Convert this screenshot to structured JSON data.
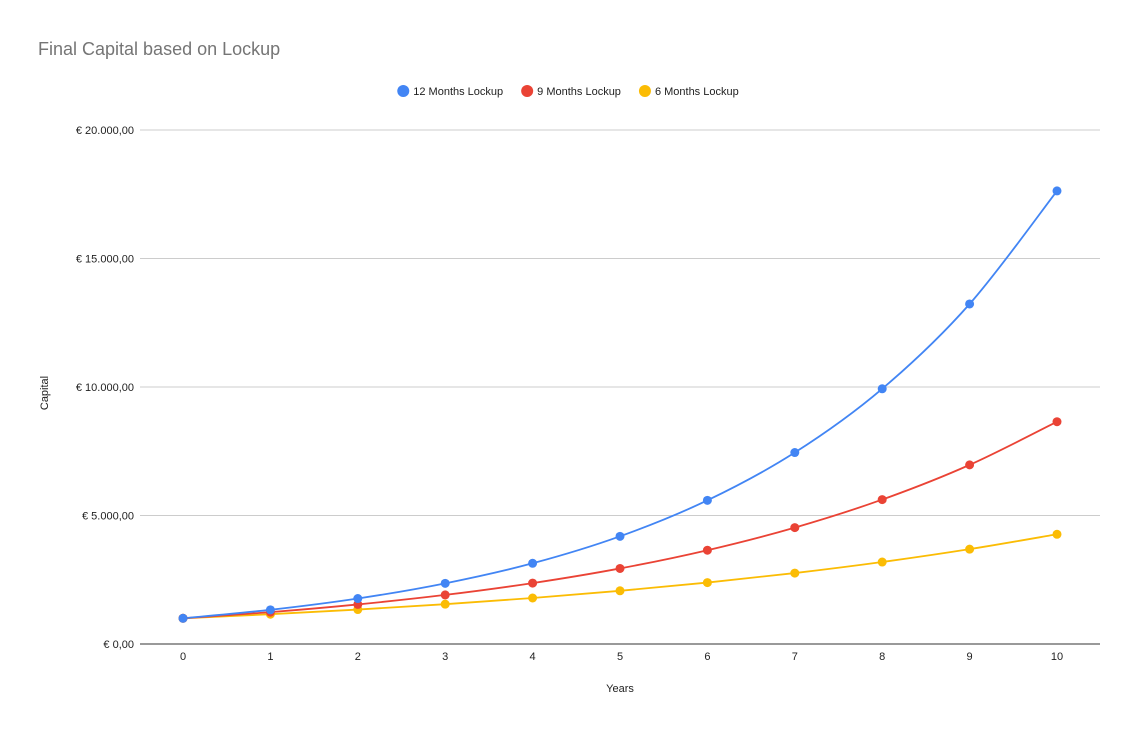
{
  "chart_data": {
    "type": "line",
    "title": "Final Capital based on Lockup",
    "xlabel": "Years",
    "ylabel": "Capital",
    "x": [
      0,
      1,
      2,
      3,
      4,
      5,
      6,
      7,
      8,
      9,
      10
    ],
    "ylim": [
      0,
      20000
    ],
    "yticks": [
      {
        "value": 0,
        "label": "€ 0,00"
      },
      {
        "value": 5000,
        "label": "€ 5.000,00"
      },
      {
        "value": 10000,
        "label": "€ 10.000,00"
      },
      {
        "value": 15000,
        "label": "€ 15.000,00"
      },
      {
        "value": 20000,
        "label": "€ 20.000,00"
      }
    ],
    "grid": true,
    "legend_position": "top-center",
    "series": [
      {
        "name": "12 Months Lockup",
        "color": "#4285f4",
        "values": [
          1000,
          1330,
          1770,
          2360,
          3140,
          4190,
          5590,
          7450,
          9930,
          13230,
          17630
        ]
      },
      {
        "name": "9 Months Lockup",
        "color": "#ea4335",
        "values": [
          1000,
          1240,
          1540,
          1910,
          2370,
          2940,
          3650,
          4530,
          5620,
          6970,
          8650
        ]
      },
      {
        "name": "6 Months Lockup",
        "color": "#fbbc04",
        "values": [
          1000,
          1160,
          1340,
          1550,
          1790,
          2070,
          2390,
          2760,
          3190,
          3690,
          4270
        ]
      }
    ]
  }
}
